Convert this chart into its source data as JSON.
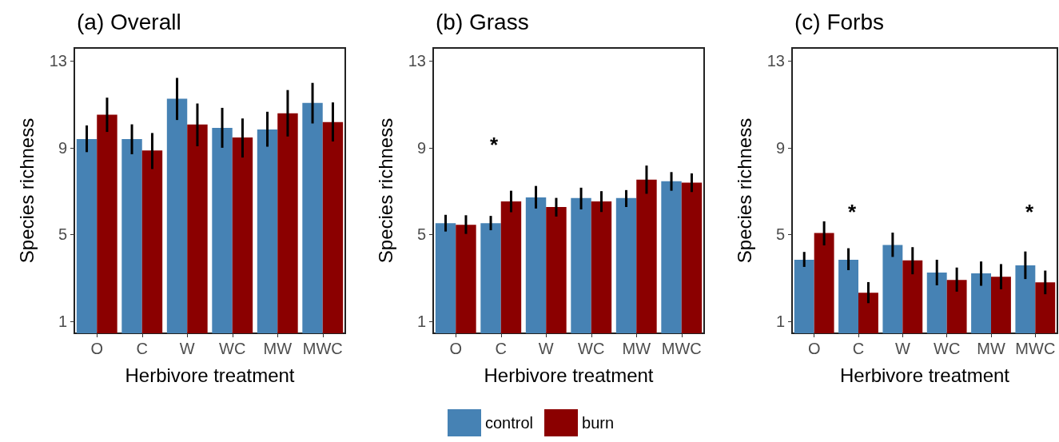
{
  "chart_data": [
    {
      "type": "bar",
      "title": "(a) Overall",
      "xlabel": "Herbivore treatment",
      "ylabel": "Species richness",
      "categories": [
        "O",
        "C",
        "W",
        "WC",
        "MW",
        "MWC"
      ],
      "ylim": [
        0.45,
        13.6
      ],
      "yticks": [
        1,
        5,
        9,
        13
      ],
      "grid": false,
      "series": [
        {
          "color": "#4682b4",
          "values": [
            9.4,
            9.4,
            11.26,
            9.92,
            9.84,
            11.07
          ],
          "errors": [
            [
              8.8,
              10.03
            ],
            [
              8.7,
              10.08
            ],
            [
              10.28,
              12.22
            ],
            [
              9.0,
              10.84
            ],
            [
              9.05,
              10.66
            ],
            [
              10.12,
              11.99
            ]
          ]
        },
        {
          "color": "#8b0000",
          "values": [
            10.52,
            8.88,
            10.07,
            9.47,
            10.59,
            10.18
          ],
          "errors": [
            [
              9.73,
              11.31
            ],
            [
              8.02,
              9.68
            ],
            [
              9.07,
              11.04
            ],
            [
              8.55,
              10.35
            ],
            [
              9.52,
              11.66
            ],
            [
              9.29,
              11.09
            ]
          ]
        }
      ]
    },
    {
      "type": "bar",
      "title": "(b) Grass",
      "xlabel": "Herbivore treatment",
      "ylabel": "Species richness",
      "categories": [
        "O",
        "C",
        "W",
        "WC",
        "MW",
        "MWC"
      ],
      "ylim": [
        0.45,
        13.6
      ],
      "yticks": [
        1,
        5,
        9,
        13
      ],
      "grid": false,
      "legend": "bottom",
      "annotations": [
        "*"
      ],
      "series": [
        {
          "name": "control",
          "color": "#4682b4",
          "values": [
            5.52,
            5.52,
            6.71,
            6.68,
            6.68,
            7.46
          ],
          "errors": [
            [
              5.14,
              5.91
            ],
            [
              5.2,
              5.86
            ],
            [
              6.2,
              7.24
            ],
            [
              6.16,
              7.16
            ],
            [
              6.27,
              7.05
            ],
            [
              7.02,
              7.88
            ]
          ]
        },
        {
          "name": "burn",
          "color": "#8b0000",
          "values": [
            5.45,
            6.53,
            6.27,
            6.53,
            7.53,
            7.39
          ],
          "errors": [
            [
              5.03,
              5.89
            ],
            [
              6.03,
              7.02
            ],
            [
              5.83,
              6.69
            ],
            [
              6.04,
              7.0
            ],
            [
              6.88,
              8.18
            ],
            [
              6.96,
              7.82
            ]
          ]
        }
      ]
    },
    {
      "type": "bar",
      "title": "(c) Forbs",
      "xlabel": "Herbivore treatment",
      "ylabel": "Species richness",
      "categories": [
        "O",
        "C",
        "W",
        "WC",
        "MW",
        "MWC"
      ],
      "ylim": [
        0.45,
        13.6
      ],
      "yticks": [
        1,
        5,
        9,
        13
      ],
      "grid": false,
      "annotations": [
        "*",
        "*"
      ],
      "series": [
        {
          "color": "#4682b4",
          "values": [
            3.84,
            3.84,
            4.52,
            3.25,
            3.21,
            3.58
          ],
          "errors": [
            [
              3.51,
              4.2
            ],
            [
              3.36,
              4.37
            ],
            [
              3.97,
              5.09
            ],
            [
              2.66,
              3.84
            ],
            [
              2.64,
              3.76
            ],
            [
              2.95,
              4.22
            ]
          ]
        },
        {
          "color": "#8b0000",
          "values": [
            5.07,
            2.32,
            3.81,
            2.91,
            3.06,
            2.8
          ],
          "errors": [
            [
              4.5,
              5.61
            ],
            [
              1.84,
              2.81
            ],
            [
              3.17,
              4.42
            ],
            [
              2.37,
              3.48
            ],
            [
              2.48,
              3.64
            ],
            [
              2.25,
              3.34
            ]
          ]
        }
      ]
    }
  ]
}
